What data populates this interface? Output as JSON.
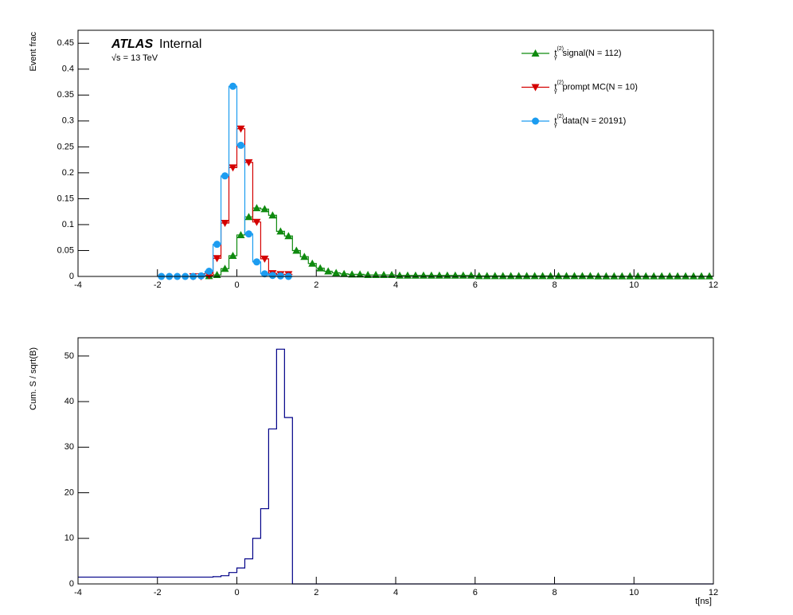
{
  "chart_data": [
    {
      "type": "histogram",
      "experiment": "ATLAS",
      "status": "Internal",
      "energy": "√s = 13 TeV",
      "ylabel": "Event frac",
      "xlim": [
        -4,
        12
      ],
      "xticks": [
        -4,
        -2,
        0,
        2,
        4,
        6,
        8,
        10,
        12
      ],
      "ylim": [
        0,
        0.475
      ],
      "yticks": [
        0,
        0.05,
        0.1,
        0.15,
        0.2,
        0.25,
        0.3,
        0.35,
        0.4,
        0.45
      ],
      "legend_symbol": "t",
      "legend_symbol_sup": "(2)",
      "legend_symbol_sub": "γ",
      "legend_position": "top-right",
      "bins": [
        -2,
        -1.8,
        -1.6,
        -1.4,
        -1.2,
        -1,
        -0.8,
        -0.6,
        -0.4,
        -0.2,
        0,
        0.2,
        0.4,
        0.6,
        0.8,
        1,
        1.2,
        1.4,
        1.6,
        1.8,
        2,
        2.2,
        2.4,
        2.6,
        2.8,
        3,
        3.2,
        3.4,
        3.6,
        3.8,
        4,
        4.2,
        4.4,
        4.6,
        4.8,
        5,
        5.2,
        5.4,
        5.6,
        5.8,
        6,
        6.2,
        6.4,
        6.6,
        6.8,
        7,
        7.2,
        7.4,
        7.6,
        7.8,
        8,
        8.2,
        8.4,
        8.6,
        8.8,
        9,
        9.2,
        9.4,
        9.6,
        9.8,
        10,
        10.2,
        10.4,
        10.6,
        10.8,
        11,
        11.2,
        11.4,
        11.6,
        11.8,
        12
      ],
      "series": [
        {
          "name": "signal(N = 112)",
          "color": "#0f8a0f",
          "marker": "triangle-up",
          "values": [
            null,
            null,
            null,
            null,
            null,
            null,
            0.001,
            0.003,
            0.015,
            0.04,
            0.08,
            0.115,
            0.132,
            0.13,
            0.118,
            0.087,
            0.078,
            0.05,
            0.038,
            0.025,
            0.016,
            0.01,
            0.007,
            0.005,
            0.004,
            0.004,
            0.003,
            0.003,
            0.003,
            0.003,
            0.002,
            0.002,
            0.002,
            0.002,
            0.002,
            0.002,
            0.002,
            0.002,
            0.002,
            0.002,
            0.001,
            0.001,
            0.001,
            0.001,
            0.001,
            0.001,
            0.001,
            0.001,
            0.001,
            0.001,
            0.001,
            0.001,
            0.001,
            0.001,
            0.001,
            0.0005,
            0.0005,
            0.0005,
            0.0005,
            0.0005,
            0.0005,
            0.0005,
            0.0005,
            0.0005,
            0.0005,
            0.0005,
            0.0005,
            0.0005,
            0.0005,
            0.0005
          ]
        },
        {
          "name": "prompt MC(N = 10)",
          "color": "#d40000",
          "marker": "triangle-down",
          "values": [
            null,
            null,
            null,
            null,
            0,
            0,
            0.002,
            0.035,
            0.103,
            0.21,
            0.285,
            0.22,
            0.105,
            0.034,
            0.006,
            0.004,
            0.004,
            null,
            null,
            null,
            null,
            null,
            null,
            null,
            null,
            null,
            null,
            null,
            null,
            null,
            null,
            null,
            null,
            null,
            null,
            null,
            null,
            null,
            null,
            null,
            null,
            null,
            null,
            null,
            null,
            null,
            null,
            null,
            null,
            null,
            null,
            null,
            null,
            null,
            null,
            null,
            null,
            null,
            null,
            null,
            null,
            null,
            null,
            null,
            null,
            null,
            null,
            null,
            null,
            null
          ]
        },
        {
          "name": "data(N = 20191)",
          "color": "#1c9cf0",
          "marker": "circle",
          "values": [
            0,
            0,
            0,
            0,
            0,
            0.001,
            0.01,
            0.062,
            0.194,
            0.367,
            0.253,
            0.082,
            0.028,
            0.005,
            0.002,
            0.001,
            0,
            null,
            null,
            null,
            null,
            null,
            null,
            null,
            null,
            null,
            null,
            null,
            null,
            null,
            null,
            null,
            null,
            null,
            null,
            null,
            null,
            null,
            null,
            null,
            null,
            null,
            null,
            null,
            null,
            null,
            null,
            null,
            null,
            null,
            null,
            null,
            null,
            null,
            null,
            null,
            null,
            null,
            null,
            null,
            null,
            null,
            null,
            null,
            null,
            null,
            null,
            null,
            null,
            null
          ]
        }
      ]
    },
    {
      "type": "histogram",
      "ylabel": "Cum. S / sqrt(B)",
      "xlabel": "t[ns]",
      "xlim": [
        -4,
        12
      ],
      "xticks": [
        -4,
        -2,
        0,
        2,
        4,
        6,
        8,
        10,
        12
      ],
      "ylim": [
        0,
        54
      ],
      "yticks": [
        0,
        10,
        20,
        30,
        40,
        50
      ],
      "color": "#000088",
      "bins": [
        -4,
        -3.8,
        -3.6,
        -3.4,
        -3.2,
        -3,
        -2.8,
        -2.6,
        -2.4,
        -2.2,
        -2,
        -1.8,
        -1.6,
        -1.4,
        -1.2,
        -1,
        -0.8,
        -0.6,
        -0.4,
        -0.2,
        0,
        0.2,
        0.4,
        0.6,
        0.8,
        1,
        1.2,
        1.4,
        1.6,
        1.8,
        2,
        2.2,
        2.4,
        2.6,
        2.8,
        3,
        3.2,
        3.4,
        3.6,
        3.8,
        4,
        4.2,
        4.4,
        4.6,
        4.8,
        5,
        5.2,
        5.4,
        5.6,
        5.8,
        6,
        6.2,
        6.4,
        6.6,
        6.8,
        7,
        7.2,
        7.4,
        7.6,
        7.8,
        8,
        8.2,
        8.4,
        8.6,
        8.8,
        9,
        9.2,
        9.4,
        9.6,
        9.8,
        10,
        10.2,
        10.4,
        10.6,
        10.8,
        11,
        11.2,
        11.4,
        11.6,
        11.8,
        12
      ],
      "values": [
        1.5,
        1.5,
        1.5,
        1.5,
        1.5,
        1.5,
        1.5,
        1.5,
        1.5,
        1.5,
        1.5,
        1.5,
        1.5,
        1.5,
        1.5,
        1.5,
        1.5,
        1.6,
        1.8,
        2.5,
        3.5,
        5.5,
        10,
        16.5,
        34,
        51.5,
        36.5,
        0,
        0,
        0,
        0,
        0,
        0,
        0,
        0,
        0,
        0,
        0,
        0,
        0,
        0,
        0,
        0,
        0,
        0,
        0,
        0,
        0,
        0,
        0,
        0,
        0,
        0,
        0,
        0,
        0,
        0,
        0,
        0,
        0,
        0,
        0,
        0,
        0,
        0,
        0,
        0,
        0,
        0,
        0,
        0,
        0,
        0,
        0,
        0,
        0,
        0,
        0,
        0,
        0
      ]
    }
  ]
}
